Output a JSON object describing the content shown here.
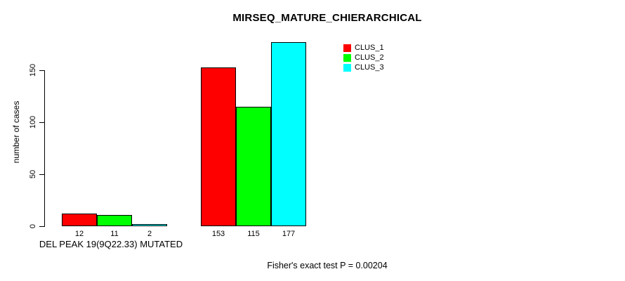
{
  "chart_data": {
    "type": "bar",
    "title": "MIRSEQ_MATURE_CHIERARCHICAL",
    "ylabel": "number of cases",
    "xlabel": "",
    "yticks": [
      0,
      50,
      100,
      150
    ],
    "ylim": [
      0,
      177
    ],
    "grid": false,
    "categories": [
      "DEL PEAK 19(9Q22.33) MUTATED",
      ""
    ],
    "series": [
      {
        "name": "CLUS_1",
        "color": "#ff0000",
        "values": [
          12,
          153
        ]
      },
      {
        "name": "CLUS_2",
        "color": "#00ff00",
        "values": [
          11,
          115
        ]
      },
      {
        "name": "CLUS_3",
        "color": "#00ffff",
        "values": [
          2,
          177
        ]
      }
    ],
    "bar_border_color": "#000000",
    "legend_position": "top-right",
    "legend_labels": [
      "CLUS_1",
      "CLUS_2",
      "CLUS_3"
    ],
    "group1_axis_label": "DEL PEAK 19(9Q22.33) MUTATED",
    "caption": "Fisher's exact test P = 0.00204"
  }
}
